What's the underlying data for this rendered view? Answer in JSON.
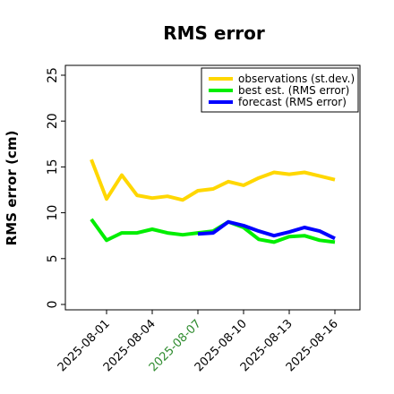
{
  "chart_data": {
    "type": "line",
    "title": "RMS error",
    "ylabel": "RMS error (cm)",
    "xlabel": "",
    "ylim": [
      0,
      25
    ],
    "yticks": [
      0,
      5,
      10,
      15,
      20,
      25
    ],
    "xlim": [
      "2025-07-30",
      "2025-08-17"
    ],
    "xtick_labels": [
      {
        "date": "2025-08-01",
        "label": "2025-08-01",
        "color": "#000000"
      },
      {
        "date": "2025-08-04",
        "label": "2025-08-04",
        "color": "#000000"
      },
      {
        "date": "2025-08-07",
        "label": "2025-08-07",
        "color": "#2e8b2e"
      },
      {
        "date": "2025-08-10",
        "label": "2025-08-10",
        "color": "#000000"
      },
      {
        "date": "2025-08-13",
        "label": "2025-08-13",
        "color": "#000000"
      },
      {
        "date": "2025-08-16",
        "label": "2025-08-16",
        "color": "#000000"
      }
    ],
    "grid": false,
    "legend_position": "top-right",
    "series": [
      {
        "name": "observations (st.dev.)",
        "color": "#ffd700",
        "x": [
          "2025-07-31",
          "2025-08-01",
          "2025-08-02",
          "2025-08-03",
          "2025-08-04",
          "2025-08-05",
          "2025-08-06",
          "2025-08-07",
          "2025-08-08",
          "2025-08-09",
          "2025-08-10",
          "2025-08-11",
          "2025-08-12",
          "2025-08-13",
          "2025-08-14",
          "2025-08-15",
          "2025-08-16"
        ],
        "values": [
          15.8,
          11.5,
          14.1,
          11.9,
          11.6,
          11.8,
          11.4,
          12.4,
          12.6,
          13.4,
          13.0,
          13.8,
          14.4,
          14.2,
          14.4,
          14.0,
          13.6
        ]
      },
      {
        "name": "best est. (RMS error)",
        "color": "#00ee00",
        "x": [
          "2025-07-31",
          "2025-08-01",
          "2025-08-02",
          "2025-08-03",
          "2025-08-04",
          "2025-08-05",
          "2025-08-06",
          "2025-08-07",
          "2025-08-08",
          "2025-08-09",
          "2025-08-10",
          "2025-08-11",
          "2025-08-12",
          "2025-08-13",
          "2025-08-14",
          "2025-08-15",
          "2025-08-16"
        ],
        "values": [
          9.3,
          7.0,
          7.8,
          7.8,
          8.2,
          7.8,
          7.6,
          7.8,
          8.0,
          9.0,
          8.4,
          7.1,
          6.8,
          7.4,
          7.5,
          7.0,
          6.8
        ]
      },
      {
        "name": "forecast (RMS error)",
        "color": "#0000ff",
        "x": [
          "2025-08-07",
          "2025-08-08",
          "2025-08-09",
          "2025-08-10",
          "2025-08-11",
          "2025-08-12",
          "2025-08-13",
          "2025-08-14",
          "2025-08-15",
          "2025-08-16"
        ],
        "values": [
          7.7,
          7.8,
          9.0,
          8.6,
          8.0,
          7.5,
          7.9,
          8.4,
          8.0,
          7.2
        ]
      }
    ]
  }
}
